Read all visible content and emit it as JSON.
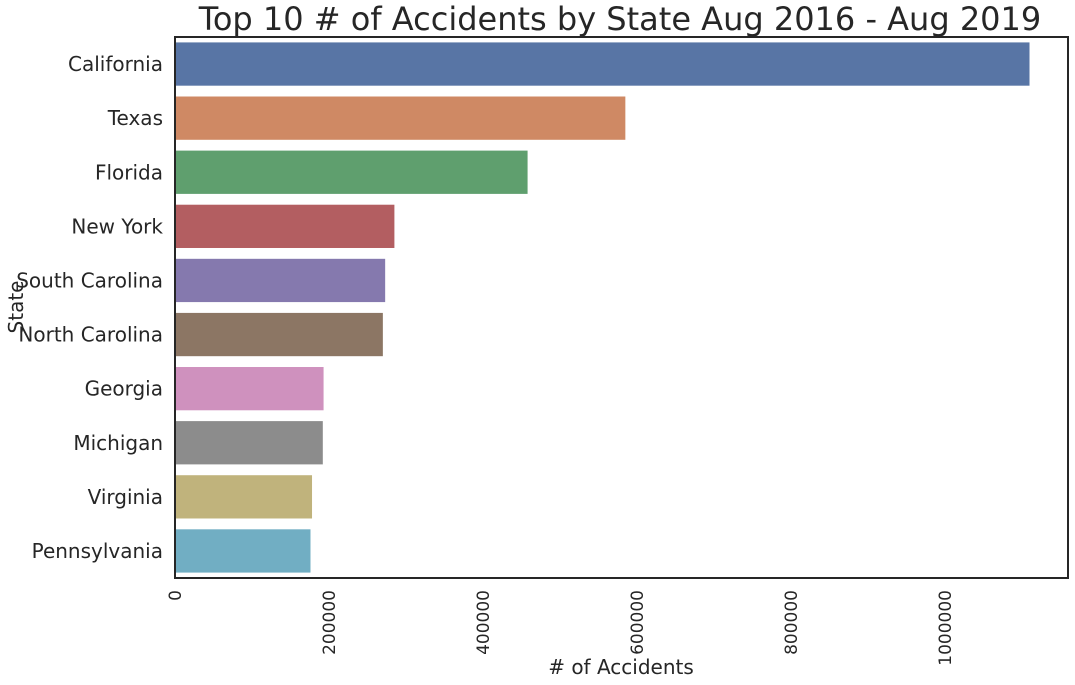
{
  "chart_data": {
    "type": "bar",
    "orientation": "horizontal",
    "title": "Top 10 # of Accidents by State Aug 2016 - Aug 2019",
    "xlabel": "# of Accidents",
    "ylabel": "State",
    "categories": [
      "California",
      "Texas",
      "Florida",
      "New York",
      "South Carolina",
      "North Carolina",
      "Georgia",
      "Michigan",
      "Virginia",
      "Pennsylvania"
    ],
    "values": [
      1110000,
      585000,
      458000,
      285000,
      273000,
      270000,
      193000,
      192000,
      178000,
      176000
    ],
    "colors": [
      "#5875a5",
      "#cf8964",
      "#5f9f6e",
      "#b35e61",
      "#8579ae",
      "#8c7664",
      "#cf91be",
      "#8c8c8c",
      "#c0b37c",
      "#71aec3"
    ],
    "xticks": [
      "0",
      "200000",
      "400000",
      "600000",
      "800000",
      "1000000"
    ],
    "xlim": [
      0,
      1160000
    ],
    "grid": false,
    "legend": "none"
  }
}
